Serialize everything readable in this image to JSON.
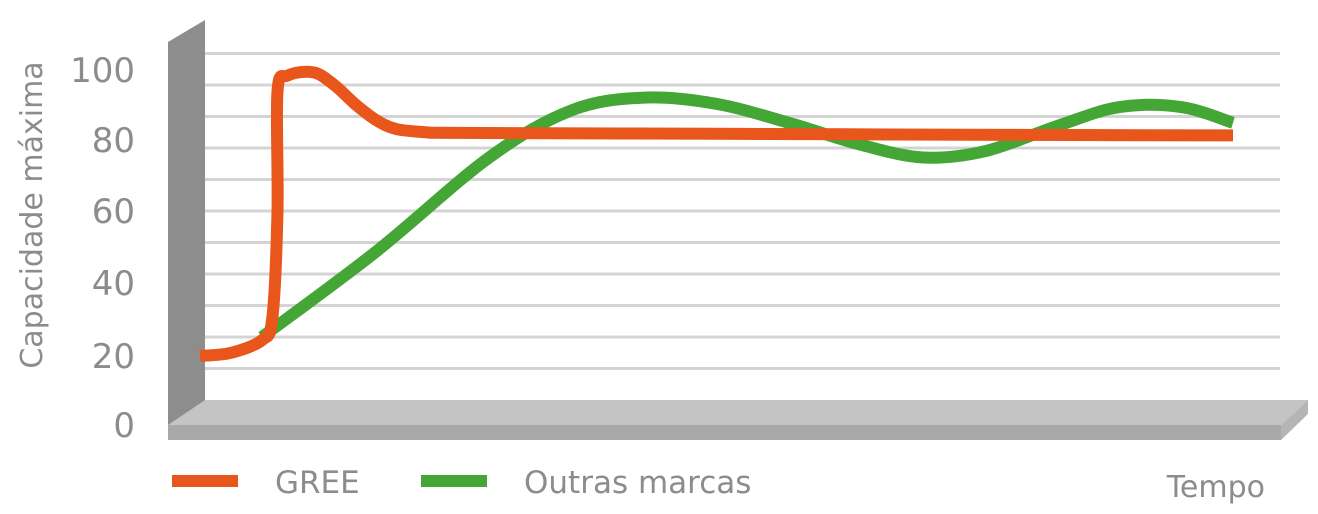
{
  "chart_data": {
    "type": "line",
    "title": "",
    "xlabel": "Tempo",
    "ylabel": "Capacidade máxima",
    "ylim": [
      0,
      110
    ],
    "y_ticks": [
      "0",
      "20",
      "40",
      "60",
      "80",
      "100"
    ],
    "grid": true,
    "legend_position": "bottom-left",
    "series": [
      {
        "name": "GREE",
        "color": "#e8561c",
        "points": [
          [
            0,
            14
          ],
          [
            3,
            15
          ],
          [
            6,
            19
          ],
          [
            7,
            26
          ],
          [
            7.5,
            60
          ],
          [
            7.5,
            98
          ],
          [
            8.5,
            103
          ],
          [
            11,
            104
          ],
          [
            13,
            100
          ],
          [
            15,
            94
          ],
          [
            17,
            89
          ],
          [
            19,
            86
          ],
          [
            22,
            85
          ],
          [
            25,
            84.8
          ],
          [
            50,
            84.5
          ],
          [
            75,
            84.2
          ],
          [
            100,
            84
          ]
        ]
      },
      {
        "name": "Outras marcas",
        "color": "#43a635",
        "points": [
          [
            6,
            20
          ],
          [
            17,
            47
          ],
          [
            28,
            77
          ],
          [
            36,
            92
          ],
          [
            43,
            96
          ],
          [
            50,
            94
          ],
          [
            57,
            88
          ],
          [
            64,
            81
          ],
          [
            70,
            77
          ],
          [
            76,
            79
          ],
          [
            83,
            87
          ],
          [
            89,
            93
          ],
          [
            95,
            93
          ],
          [
            100,
            88
          ]
        ]
      }
    ]
  }
}
